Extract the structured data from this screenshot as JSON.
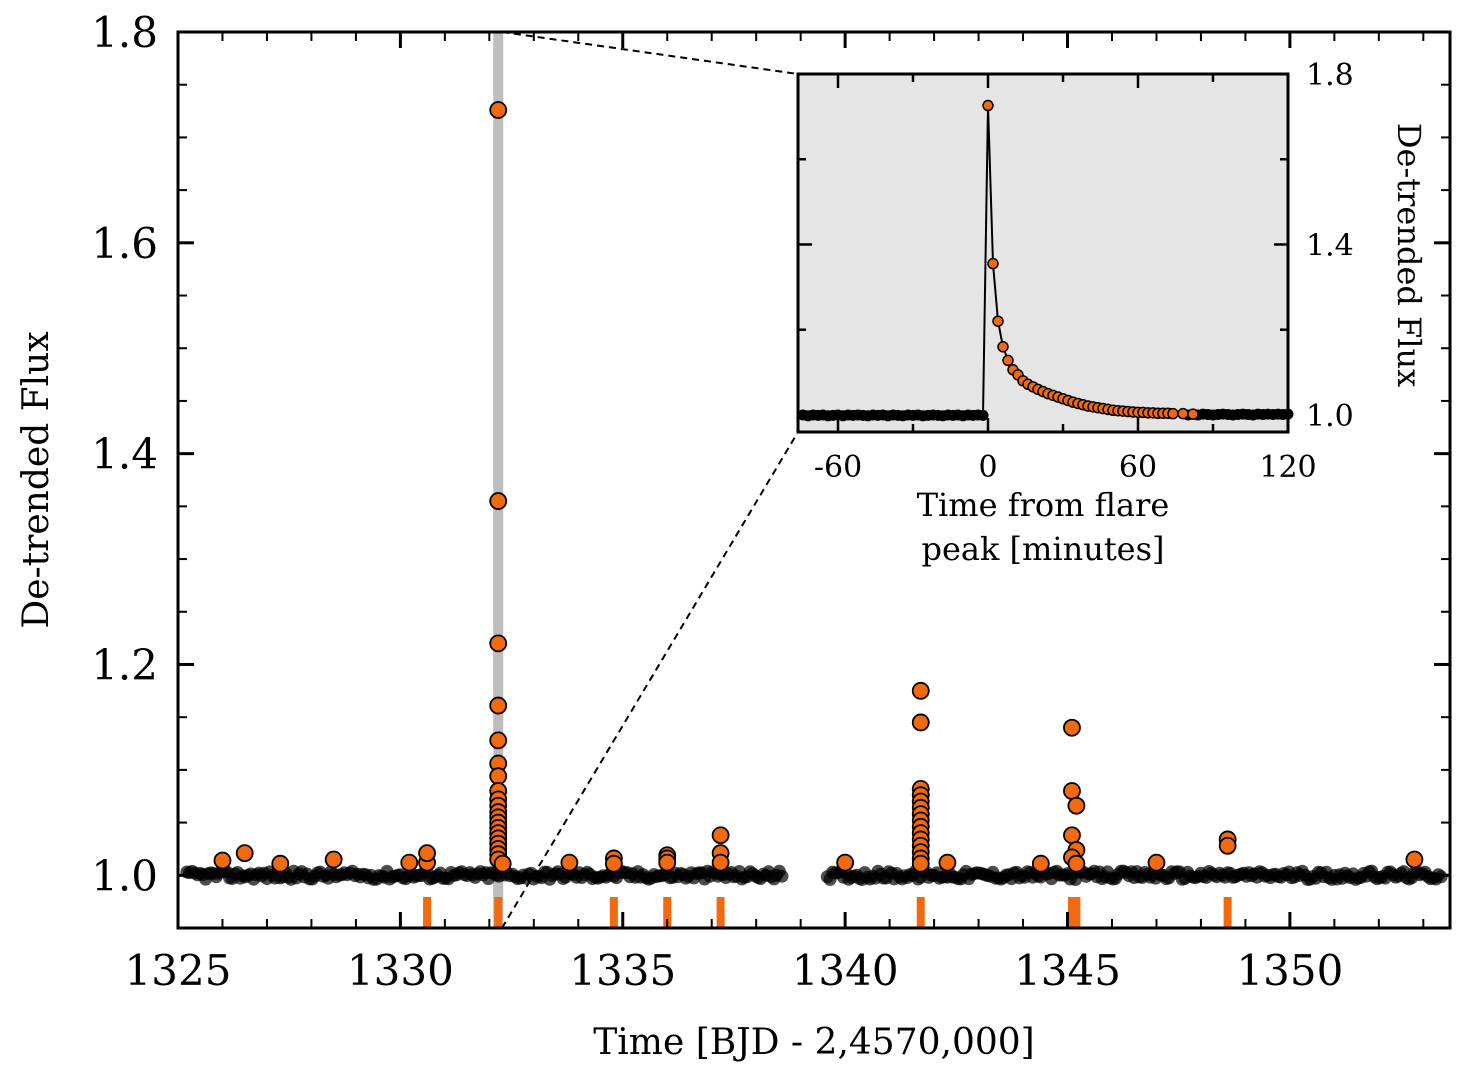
{
  "chart_data": [
    {
      "id": "main",
      "type": "scatter",
      "xlabel": "Time [BJD - 2,4570,000]",
      "ylabel": "De-trended Flux",
      "xlim": [
        1325,
        1353.6
      ],
      "ylim": [
        0.95,
        1.8
      ],
      "xticks": [
        1325,
        1330,
        1335,
        1340,
        1345,
        1350
      ],
      "xtick_labels": [
        "1325",
        "1330",
        "1335",
        "1340",
        "1345",
        "1350"
      ],
      "yticks": [
        1.0,
        1.2,
        1.4,
        1.6,
        1.8
      ],
      "ytick_labels": [
        "1.0",
        "1.2",
        "1.4",
        "1.6",
        "1.8"
      ],
      "highlight_band_x": 1332.2,
      "baseline_segments": [
        [
          1325.2,
          1338.6
        ],
        [
          1339.6,
          1353.4
        ]
      ],
      "series": [
        {
          "name": "flare points",
          "color": "#f26a0f",
          "points": [
            [
              1326.0,
              1.014
            ],
            [
              1326.5,
              1.021
            ],
            [
              1327.3,
              1.011
            ],
            [
              1328.5,
              1.015
            ],
            [
              1330.2,
              1.012
            ],
            [
              1330.6,
              1.012
            ],
            [
              1330.6,
              1.021
            ],
            [
              1332.2,
              1.726
            ],
            [
              1332.2,
              1.355
            ],
            [
              1332.2,
              1.22
            ],
            [
              1332.2,
              1.161
            ],
            [
              1332.2,
              1.128
            ],
            [
              1332.2,
              1.106
            ],
            [
              1332.2,
              1.094
            ],
            [
              1332.2,
              1.08
            ],
            [
              1332.2,
              1.072
            ],
            [
              1332.2,
              1.066
            ],
            [
              1332.2,
              1.06
            ],
            [
              1332.2,
              1.055
            ],
            [
              1332.2,
              1.05
            ],
            [
              1332.2,
              1.045
            ],
            [
              1332.2,
              1.04
            ],
            [
              1332.2,
              1.035
            ],
            [
              1332.2,
              1.03
            ],
            [
              1332.2,
              1.025
            ],
            [
              1332.2,
              1.02
            ],
            [
              1332.2,
              1.015
            ],
            [
              1332.3,
              1.011
            ],
            [
              1333.8,
              1.012
            ],
            [
              1334.8,
              1.016
            ],
            [
              1334.8,
              1.011
            ],
            [
              1336.0,
              1.019
            ],
            [
              1336.0,
              1.016
            ],
            [
              1336.0,
              1.012
            ],
            [
              1337.2,
              1.038
            ],
            [
              1337.2,
              1.021
            ],
            [
              1337.2,
              1.012
            ],
            [
              1340.0,
              1.012
            ],
            [
              1341.7,
              1.175
            ],
            [
              1341.7,
              1.145
            ],
            [
              1341.7,
              1.082
            ],
            [
              1341.7,
              1.076
            ],
            [
              1341.7,
              1.07
            ],
            [
              1341.7,
              1.064
            ],
            [
              1341.7,
              1.058
            ],
            [
              1341.7,
              1.052
            ],
            [
              1341.7,
              1.046
            ],
            [
              1341.7,
              1.04
            ],
            [
              1341.7,
              1.034
            ],
            [
              1341.7,
              1.028
            ],
            [
              1341.7,
              1.022
            ],
            [
              1341.7,
              1.016
            ],
            [
              1341.7,
              1.011
            ],
            [
              1342.3,
              1.012
            ],
            [
              1344.4,
              1.011
            ],
            [
              1345.1,
              1.14
            ],
            [
              1345.1,
              1.08
            ],
            [
              1345.2,
              1.066
            ],
            [
              1345.1,
              1.038
            ],
            [
              1345.2,
              1.024
            ],
            [
              1345.1,
              1.017
            ],
            [
              1345.2,
              1.011
            ],
            [
              1347.0,
              1.012
            ],
            [
              1348.6,
              1.034
            ],
            [
              1348.6,
              1.028
            ],
            [
              1352.8,
              1.015
            ]
          ]
        }
      ],
      "flare_markers_x": [
        1330.6,
        1332.2,
        1334.8,
        1336.0,
        1337.2,
        1341.7,
        1345.1,
        1345.2,
        1348.6
      ]
    },
    {
      "id": "inset",
      "type": "line",
      "xlabel": "Time from flare peak [minutes]",
      "xlabel_lines": [
        "Time from flare",
        "peak [minutes]"
      ],
      "ylabel": "De-trended Flux",
      "xlim": [
        -76,
        120
      ],
      "ylim": [
        0.96,
        1.8
      ],
      "xticks": [
        -60,
        0,
        60,
        120
      ],
      "xtick_labels": [
        "-60",
        "0",
        "60",
        "120"
      ],
      "yticks": [
        1.0,
        1.4,
        1.8
      ],
      "ytick_labels": [
        "1.0",
        "1.4",
        "1.8"
      ],
      "series": [
        {
          "name": "quiescent",
          "color": "#000000",
          "x": [
            -74,
            -72,
            -70,
            -68,
            -66,
            -64,
            -62,
            -60,
            -58,
            -56,
            -54,
            -52,
            -50,
            -48,
            -46,
            -44,
            -42,
            -40,
            -38,
            -36,
            -34,
            -32,
            -30,
            -28,
            -26,
            -24,
            -22,
            -20,
            -18,
            -16,
            -14,
            -12,
            -10,
            -8,
            -6,
            -4,
            -2,
            80,
            82,
            84,
            86,
            88,
            90,
            92,
            94,
            96,
            98,
            100,
            102,
            104,
            106,
            108,
            110,
            112,
            114,
            116,
            118,
            120
          ],
          "y": [
            1.0,
            0.998,
            1.0,
            0.999,
            1.0,
            0.998,
            0.999,
            1.0,
            0.998,
            1.0,
            0.999,
            1.0,
            0.999,
            0.998,
            1.0,
            0.999,
            1.0,
            0.998,
            1.0,
            0.999,
            0.998,
            1.0,
            0.999,
            1.0,
            0.998,
            0.999,
            1.0,
            0.999,
            0.998,
            1.0,
            0.999,
            1.0,
            0.998,
            1.0,
            0.999,
            1.0,
            0.999,
            1.0,
            1.001,
            1.0,
            1.002,
            1.001,
            1.0,
            1.001,
            1.002,
            1.001,
            1.0,
            1.001,
            1.002,
            1.001,
            1.0,
            1.002,
            1.001,
            1.002,
            1.001,
            1.002,
            1.001,
            1.002
          ]
        },
        {
          "name": "flare",
          "color": "#f26a0f",
          "x": [
            0,
            2,
            4,
            6,
            8,
            10,
            12,
            14,
            16,
            18,
            20,
            22,
            24,
            26,
            28,
            30,
            32,
            34,
            36,
            38,
            40,
            42,
            44,
            46,
            48,
            50,
            52,
            54,
            56,
            58,
            60,
            62,
            64,
            66,
            68,
            70,
            72,
            74,
            78,
            82
          ],
          "y": [
            1.726,
            1.355,
            1.22,
            1.16,
            1.128,
            1.106,
            1.094,
            1.08,
            1.072,
            1.066,
            1.06,
            1.055,
            1.05,
            1.046,
            1.042,
            1.038,
            1.034,
            1.03,
            1.027,
            1.024,
            1.021,
            1.019,
            1.017,
            1.015,
            1.013,
            1.011,
            1.01,
            1.009,
            1.008,
            1.007,
            1.006,
            1.006,
            1.005,
            1.005,
            1.004,
            1.004,
            1.004,
            1.003,
            1.003,
            1.002
          ]
        }
      ]
    }
  ]
}
